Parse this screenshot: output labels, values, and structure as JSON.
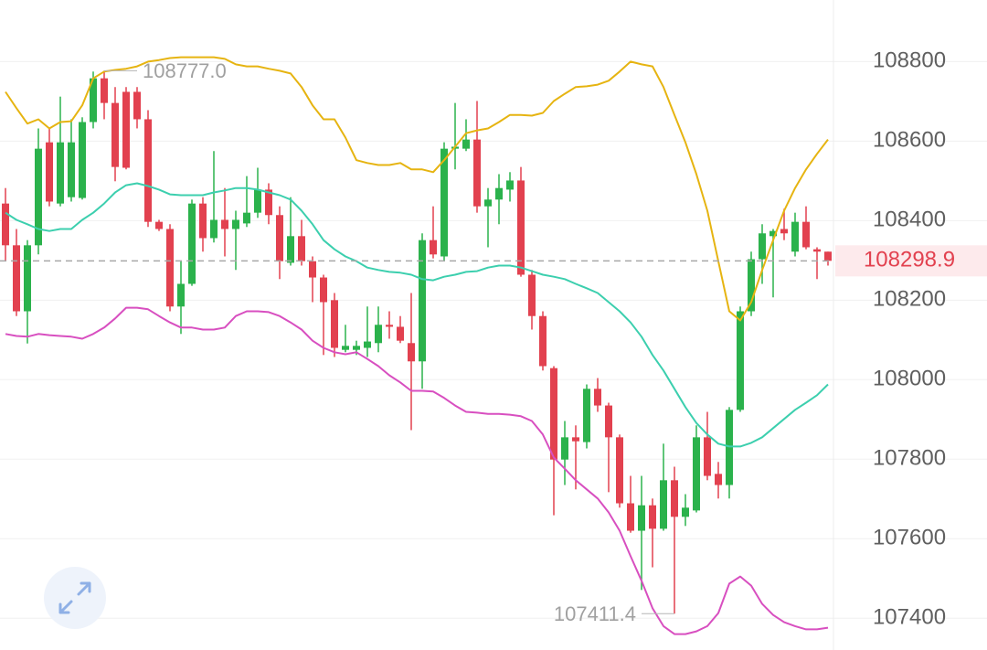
{
  "chart_data": {
    "type": "candlestick",
    "up_color": "#2bb24c",
    "down_color": "#e2414f",
    "ylim": [
      107320,
      108955
    ],
    "yticks": [
      107400,
      107600,
      107800,
      108000,
      108200,
      108400,
      108600,
      108800
    ],
    "grid": true,
    "open": [
      108443,
      108338,
      108172,
      108338,
      108597,
      108443,
      108459,
      108457,
      108648,
      108758,
      108696,
      108724,
      108724,
      108655,
      108397,
      108379,
      108184,
      108241,
      108443,
      108356,
      108402,
      108379,
      108393,
      108420,
      108478,
      108414,
      108294,
      108361,
      108298,
      108257,
      108200,
      108075,
      108075,
      108080,
      108092,
      108138,
      108133,
      108092,
      108046,
      108351,
      108310,
      108581,
      108581,
      108604,
      108436,
      108453,
      108478,
      108501,
      108264,
      108160,
      108029,
      107799,
      107855,
      107843,
      107977,
      107935,
      107855,
      107689,
      107620,
      107684,
      107625,
      107747,
      107655,
      107671,
      107855,
      107763,
      107735,
      107924,
      108172,
      108303,
      108361,
      108379,
      108322,
      108397,
      108328,
      108322
    ],
    "high": [
      108482,
      108379,
      108351,
      108632,
      108632,
      108712,
      108655,
      108660,
      108775,
      108777,
      108736,
      108736,
      108736,
      108678,
      108402,
      108391,
      108298,
      108453,
      108459,
      108575,
      108482,
      108425,
      108512,
      108533,
      108494,
      108436,
      108459,
      108402,
      108310,
      108264,
      108218,
      108138,
      108098,
      108184,
      108184,
      108172,
      108160,
      108218,
      108368,
      108436,
      108597,
      108696,
      108655,
      108701,
      108482,
      108517,
      108522,
      108535,
      108276,
      108172,
      108034,
      107896,
      107885,
      107988,
      108004,
      107942,
      107862,
      107758,
      107758,
      107701,
      107839,
      107781,
      107712,
      107885,
      107919,
      107793,
      107931,
      108184,
      108322,
      108391,
      108379,
      108430,
      108420,
      108436,
      108333,
      108322
    ],
    "low": [
      108298,
      108160,
      108091,
      108315,
      108436,
      108436,
      108448,
      108453,
      108632,
      108655,
      108499,
      108529,
      108632,
      108384,
      108374,
      108172,
      108115,
      108236,
      108322,
      108345,
      108310,
      108276,
      108384,
      108407,
      108391,
      108253,
      108287,
      108287,
      108195,
      108062,
      108057,
      108069,
      108062,
      108057,
      108069,
      108103,
      108092,
      107873,
      107977,
      108305,
      108298,
      108529,
      108575,
      108420,
      108333,
      108391,
      108448,
      108259,
      108126,
      108023,
      107659,
      107735,
      107724,
      107827,
      107919,
      107717,
      107678,
      107615,
      107471,
      107528,
      107620,
      107411.4,
      107632,
      107666,
      107747,
      107701,
      107701,
      107919,
      108160,
      108241,
      108207,
      108351,
      108310,
      108328,
      108253,
      108287
    ],
    "close": [
      108338,
      108172,
      108338,
      108581,
      108448,
      108597,
      108597,
      108648,
      108758,
      108696,
      108535,
      108533,
      108655,
      108397,
      108379,
      108184,
      108241,
      108443,
      108356,
      108402,
      108379,
      108402,
      108420,
      108478,
      108414,
      108298,
      108361,
      108298,
      108257,
      108195,
      108080,
      108085,
      108085,
      108096,
      108138,
      108133,
      108098,
      108046,
      108351,
      108315,
      108581,
      108586,
      108604,
      108436,
      108453,
      108482,
      108501,
      108264,
      108160,
      108034,
      107799,
      107855,
      107845,
      107977,
      107935,
      107855,
      107689,
      107620,
      107684,
      107625,
      107747,
      107655,
      107678,
      107855,
      107758,
      107735,
      107924,
      108172,
      108303,
      108368,
      108374,
      108368,
      108397,
      108333,
      108322,
      108298.9
    ],
    "series": [
      {
        "color": "#e6b411",
        "values": [
          108724,
          108683,
          108644,
          108655,
          108632,
          108648,
          108650,
          108690,
          108758,
          108775,
          108779,
          108782,
          108788,
          108800,
          108804,
          108809,
          108811,
          108811,
          108811,
          108811,
          108807,
          108793,
          108788,
          108788,
          108782,
          108777,
          108770,
          108736,
          108690,
          108655,
          108655,
          108609,
          108552,
          108545,
          108540,
          108540,
          108545,
          108529,
          108529,
          108522,
          108552,
          108586,
          108620,
          108627,
          108632,
          108648,
          108666,
          108666,
          108664,
          108671,
          108701,
          108719,
          108736,
          108738,
          108742,
          108752,
          108775,
          108800,
          108793,
          108788,
          108736,
          108666,
          108597,
          108517,
          108425,
          108298,
          108172,
          108149,
          108195,
          108276,
          108351,
          108425,
          108482,
          108529,
          108568,
          108604
        ]
      },
      {
        "color": "#3ccfae",
        "values": [
          108420,
          108402,
          108391,
          108379,
          108374,
          108379,
          108379,
          108402,
          108420,
          108443,
          108471,
          108489,
          108494,
          108487,
          108478,
          108466,
          108464,
          108464,
          108464,
          108471,
          108476,
          108482,
          108482,
          108478,
          108471,
          108464,
          108453,
          108425,
          108391,
          108351,
          108328,
          108310,
          108298,
          108282,
          108276,
          108271,
          108269,
          108264,
          108253,
          108250,
          108259,
          108264,
          108271,
          108273,
          108282,
          108287,
          108287,
          108282,
          108273,
          108264,
          108259,
          108253,
          108241,
          108230,
          108218,
          108195,
          108172,
          108144,
          108108,
          108062,
          108023,
          107977,
          107931,
          107891,
          107862,
          107839,
          107832,
          107832,
          107841,
          107855,
          107878,
          107901,
          107924,
          107942,
          107961,
          107988
        ]
      },
      {
        "color": "#d84fc0",
        "values": [
          108115,
          108110,
          108108,
          108115,
          108112,
          108110,
          108108,
          108103,
          108115,
          108131,
          108154,
          108181,
          108181,
          108177,
          108160,
          108144,
          108131,
          108131,
          108126,
          108126,
          108131,
          108160,
          108172,
          108172,
          108170,
          108160,
          108144,
          108126,
          108098,
          108080,
          108069,
          108064,
          108069,
          108052,
          108034,
          108011,
          107993,
          107972,
          107972,
          107970,
          107954,
          107935,
          107919,
          107917,
          107914,
          107914,
          107912,
          107908,
          107896,
          107862,
          107804,
          107776,
          107747,
          107724,
          107701,
          107666,
          107620,
          107556,
          107494,
          107425,
          107380,
          107360,
          107360,
          107367,
          107380,
          107413,
          107487,
          107505,
          107482,
          107436,
          107408,
          107390,
          107380,
          107372,
          107372,
          107376
        ]
      }
    ],
    "last_price": 108298.9,
    "annotations": [
      {
        "value": 108777,
        "label": "108777.0"
      },
      {
        "value": 107411.4,
        "label": "107411.4"
      }
    ]
  }
}
